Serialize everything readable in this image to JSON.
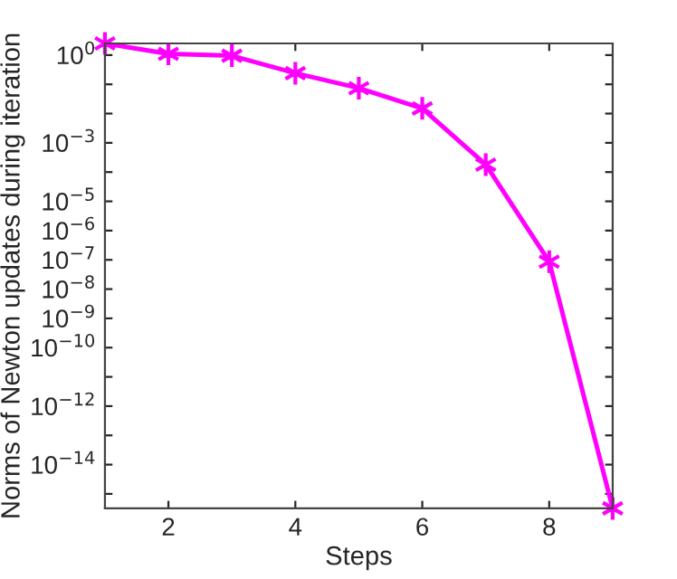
{
  "chart_data": {
    "type": "line",
    "xlabel": "Steps",
    "ylabel": "Norms of Newton updates during iteration",
    "x": [
      1,
      2,
      3,
      4,
      5,
      6,
      7,
      8,
      9
    ],
    "series": [
      {
        "color": "#ff00ff",
        "values": [
          2.5,
          1.1,
          0.95,
          0.24,
          0.074,
          0.015,
          0.00018,
          8.7e-08,
          3.2e-16
        ]
      }
    ],
    "log": "y",
    "xlim": [
      1,
      9
    ],
    "ylim": [
      3.2e-16,
      2.5
    ],
    "xticks": [
      2,
      4,
      6,
      8
    ],
    "yticks": [
      {
        "value": 1,
        "label": "10$^{0}$"
      },
      {
        "value": 0.1,
        "label": null
      },
      {
        "value": 0.01,
        "label": null
      },
      {
        "value": 0.001,
        "label": "10$^{−3}$"
      },
      {
        "value": 0.0001,
        "label": null
      },
      {
        "value": 1e-05,
        "label": "10$^{−5}$"
      },
      {
        "value": 1e-06,
        "label": "10$^{−6}$"
      },
      {
        "value": 1e-07,
        "label": "10$^{−7}$"
      },
      {
        "value": 1e-08,
        "label": "10$^{−8}$"
      },
      {
        "value": 1e-09,
        "label": "10$^{−9}$"
      },
      {
        "value": 1e-10,
        "label": "10$^{−10}$"
      },
      {
        "value": 1e-11,
        "label": null
      },
      {
        "value": 1e-12,
        "label": "10$^{−12}$"
      },
      {
        "value": 1e-13,
        "label": null
      },
      {
        "value": 1e-14,
        "label": "10$^{−14}$"
      },
      {
        "value": 1e-15,
        "label": null
      }
    ],
    "grid": false,
    "legend": false,
    "marker": "cross",
    "line_style": "solid"
  }
}
